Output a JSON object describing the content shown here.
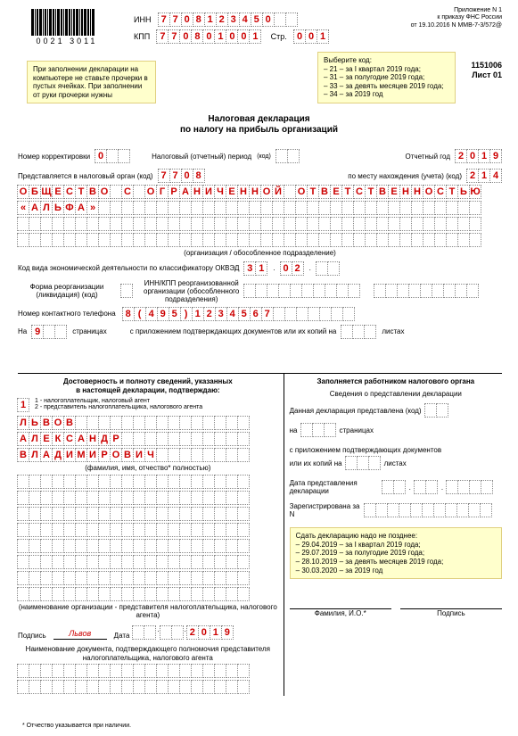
{
  "header": {
    "barcode_text": "0021 3011",
    "approval_line1": "Приложение N 1",
    "approval_line2": "к приказу ФНС России",
    "approval_line3": "от 19.10.2016 N ММВ-7-3/572@",
    "form_code": "1151006",
    "sheet_label": "Лист 01",
    "inn_label": "ИНН",
    "inn": [
      "7",
      "7",
      "0",
      "8",
      "1",
      "2",
      "3",
      "4",
      "5",
      "0",
      "",
      ""
    ],
    "kpp_label": "КПП",
    "kpp": [
      "7",
      "7",
      "0",
      "8",
      "0",
      "1",
      "0",
      "0",
      "1"
    ],
    "page_label": "Стр.",
    "page": [
      "0",
      "0",
      "1"
    ]
  },
  "notes": {
    "fill_note": "При заполнении декларации на компьютере не ставьте прочерки в пустых ячейках. При заполнении от руки прочерки нужны",
    "period_note_title": "Выберите код:",
    "period_note_lines": [
      "– 21 – за I квартал 2019 года;",
      "– 31 – за полугодие 2019 года;",
      "– 33 – за девять месяцев 2019 года;",
      "– 34 – за 2019 год"
    ],
    "deadlines_title": "Сдать декларацию надо не позднее:",
    "deadlines_lines": [
      "– 29.04.2019 – за I квартал 2019 года;",
      "– 29.07.2019 – за полугодие 2019 года;",
      "– 28.10.2019 – за девять месяцев 2019 года;",
      "– 30.03.2020 – за 2019 год"
    ]
  },
  "title": {
    "line1": "Налоговая декларация",
    "line2": "по налогу на прибыль организаций"
  },
  "fields": {
    "correction_label": "Номер корректировки",
    "correction": [
      "0",
      "",
      ""
    ],
    "tax_period_label": "Налоговый (отчетный) период",
    "code_suffix": "(код)",
    "report_year_label": "Отчетный год",
    "report_year": [
      "2",
      "0",
      "1",
      "9"
    ],
    "tax_authority_label": "Представляется в налоговый орган (код)",
    "tax_authority": [
      "7",
      "7",
      "0",
      "8"
    ],
    "location_label": "по месту нахождения (учета) (код)",
    "location": [
      "2",
      "1",
      "4"
    ],
    "org_name_caption": "(организация / обособленное подразделение)",
    "org_row1": [
      "О",
      "Б",
      "Щ",
      "Е",
      "С",
      "Т",
      "В",
      "О",
      "",
      "С",
      "",
      "О",
      "Г",
      "Р",
      "А",
      "Н",
      "И",
      "Ч",
      "Е",
      "Н",
      "Н",
      "О",
      "Й",
      "",
      "О",
      "Т",
      "В",
      "Е",
      "Т",
      "С",
      "Т",
      "В",
      "Е",
      "Н",
      "Н",
      "О",
      "С",
      "Т",
      "Ь",
      "Ю"
    ],
    "org_row2": [
      "«",
      "А",
      "Л",
      "Ь",
      "Ф",
      "А",
      "»",
      "",
      "",
      "",
      "",
      "",
      "",
      "",
      "",
      "",
      "",
      "",
      "",
      "",
      "",
      "",
      "",
      "",
      "",
      "",
      "",
      "",
      "",
      "",
      "",
      "",
      "",
      "",
      "",
      "",
      "",
      "",
      "",
      ""
    ],
    "okved_label": "Код вида экономической деятельности по классификатору ОКВЭД",
    "okved_1": [
      "3",
      "1"
    ],
    "okved_2": [
      "0",
      "2"
    ],
    "okved_3": [
      "",
      ""
    ],
    "reorg_label1": "Форма реорганизации",
    "reorg_label2": "(ликвидация) (код)",
    "reorg_inn_label1": "ИНН/КПП реорганизованной",
    "reorg_inn_label2": "организации (обособленного",
    "reorg_inn_label3": "подразделения)",
    "phone_label": "Номер контактного телефона",
    "phone": [
      "8",
      "(",
      "4",
      "9",
      "5",
      ")",
      "1",
      "2",
      "3",
      "4",
      "5",
      "6",
      "7",
      "",
      "",
      "",
      "",
      "",
      "",
      ""
    ],
    "pages_label_on": "На",
    "pages": [
      "9",
      "",
      ""
    ],
    "pages_label": "страницах",
    "attachments_label": "с приложением подтверждающих документов или их копий на",
    "sheets_label": "листах"
  },
  "signature": {
    "header_left_1": "Достоверность и полноту сведений, указанных",
    "header_left_2": "в настоящей декларации, подтверждаю:",
    "person_type": [
      "1"
    ],
    "type1_label": "1 - налогоплательщик, налоговый агент",
    "type2_label": "2 - представитель налогоплательщика, налогового агента",
    "fio_row1": [
      "Л",
      "Ь",
      "В",
      "О",
      "В",
      "",
      "",
      "",
      "",
      "",
      "",
      "",
      "",
      "",
      "",
      "",
      "",
      "",
      "",
      ""
    ],
    "fio_row2": [
      "А",
      "Л",
      "Е",
      "К",
      "С",
      "А",
      "Н",
      "Д",
      "Р",
      "",
      "",
      "",
      "",
      "",
      "",
      "",
      "",
      "",
      "",
      ""
    ],
    "fio_row3": [
      "В",
      "Л",
      "А",
      "Д",
      "И",
      "М",
      "И",
      "Р",
      "О",
      "В",
      "И",
      "Ч",
      "",
      "",
      "",
      "",
      "",
      "",
      "",
      ""
    ],
    "fio_caption": "(фамилия, имя, отчество* полностью)",
    "org_caption": "(наименование организации - представителя налогоплательщика, налогового агента)",
    "sign_label": "Подпись",
    "sign_value": "Львов",
    "date_label": "Дата",
    "date": [
      "",
      "",
      "",
      "",
      "2",
      "0",
      "1",
      "9"
    ],
    "doc_label1": "Наименование документа, подтверждающего полномочия представителя",
    "doc_label2": "налогоплательщика, налогового агента"
  },
  "inspector": {
    "header": "Заполняется работником налогового органа",
    "sub_header": "Сведения о представлении декларации",
    "presented_label": "Данная декларация представлена (код)",
    "on_label": "на",
    "pages_label": "страницах",
    "attachments_label": "с приложением подтверждающих документов",
    "copies_label": "или их копий на",
    "sheets_label": "листах",
    "date_label": "Дата представления декларации",
    "reg_label": "Зарегистрирована за N",
    "fio_label": "Фамилия, И.О.*",
    "sign_label": "Подпись"
  },
  "footnote": "* Отчество указывается при наличии.",
  "colors": {
    "filled_text": "#c00",
    "note_bg": "#ffffcc",
    "cell_border": "#888"
  }
}
